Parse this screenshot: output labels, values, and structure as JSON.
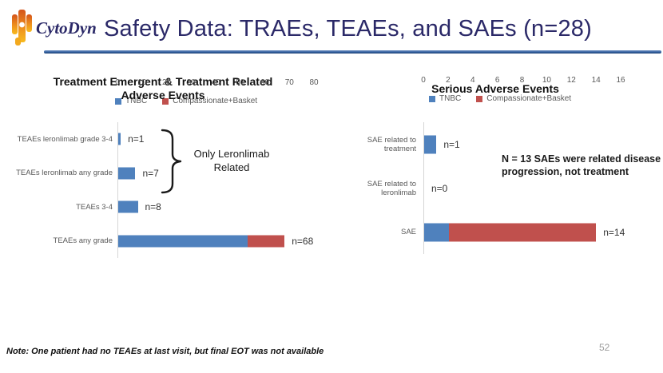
{
  "header": {
    "logo_text": "CytoDyn",
    "title": "Safety Data: TRAEs, TEAEs, and SAEs (n=28)"
  },
  "colors": {
    "tnbc_blue": "#4f81bd",
    "basket_red": "#c0504d",
    "title_navy": "#2b2968"
  },
  "chart_data": [
    {
      "type": "bar",
      "orientation": "horizontal",
      "title": "Treatment Emergent & Treatment Related Adverse Events",
      "title_lines": [
        "Treatment Emergent & Treatment Related",
        "Adverse Events"
      ],
      "categories": [
        "TEAEs leronlimab grade 3-4",
        "TEAEs leronlimab any grade",
        "TEAEs 3-4",
        "TEAEs any grade"
      ],
      "series": [
        {
          "name": "TNBC",
          "color": "#4f81bd",
          "values": [
            1,
            7,
            8,
            53
          ]
        },
        {
          "name": "Compassionate+Basket",
          "color": "#c0504d",
          "values": [
            0,
            0,
            0,
            15
          ]
        }
      ],
      "bar_totals": [
        1,
        7,
        8,
        68
      ],
      "bar_labels": [
        "n=1",
        "n=7",
        "n=8",
        "n=68"
      ],
      "xlim": [
        0,
        80
      ],
      "xticks": [
        0,
        10,
        20,
        30,
        40,
        50,
        60,
        70,
        80
      ],
      "grid": false,
      "legend_position": "bottom",
      "legend": [
        {
          "label": "TNBC",
          "color": "#4f81bd"
        },
        {
          "label": "Compassionate+Basket",
          "color": "#c0504d"
        }
      ],
      "annotation": {
        "type": "brace",
        "lines": [
          "Only Leronlimab",
          "Related"
        ]
      }
    },
    {
      "type": "bar",
      "orientation": "horizontal",
      "title": "Serious Adverse Events",
      "title_lines": [
        "Serious Adverse Events"
      ],
      "categories": [
        "SAE related to treatment",
        "SAE related to leronlimab",
        "SAE"
      ],
      "series": [
        {
          "name": "TNBC",
          "color": "#4f81bd",
          "values": [
            1,
            0,
            2
          ]
        },
        {
          "name": "Compassionate+Basket",
          "color": "#c0504d",
          "values": [
            0,
            0,
            12
          ]
        }
      ],
      "bar_totals": [
        1,
        0,
        14
      ],
      "bar_labels": [
        "n=1",
        "n=0",
        "n=14"
      ],
      "xlim": [
        0,
        16
      ],
      "xticks": [
        0,
        2,
        4,
        6,
        8,
        10,
        12,
        14,
        16
      ],
      "grid": false,
      "legend_position": "bottom",
      "legend": [
        {
          "label": "TNBC",
          "color": "#4f81bd"
        },
        {
          "label": "Compassionate+Basket",
          "color": "#c0504d"
        }
      ],
      "annotation": {
        "type": "text",
        "text": "N = 13 SAEs were related disease progression, not treatment"
      }
    }
  ],
  "footer": {
    "note": "Note: One patient had no TEAEs at last visit, but final EOT was not available",
    "page_number": "52"
  }
}
